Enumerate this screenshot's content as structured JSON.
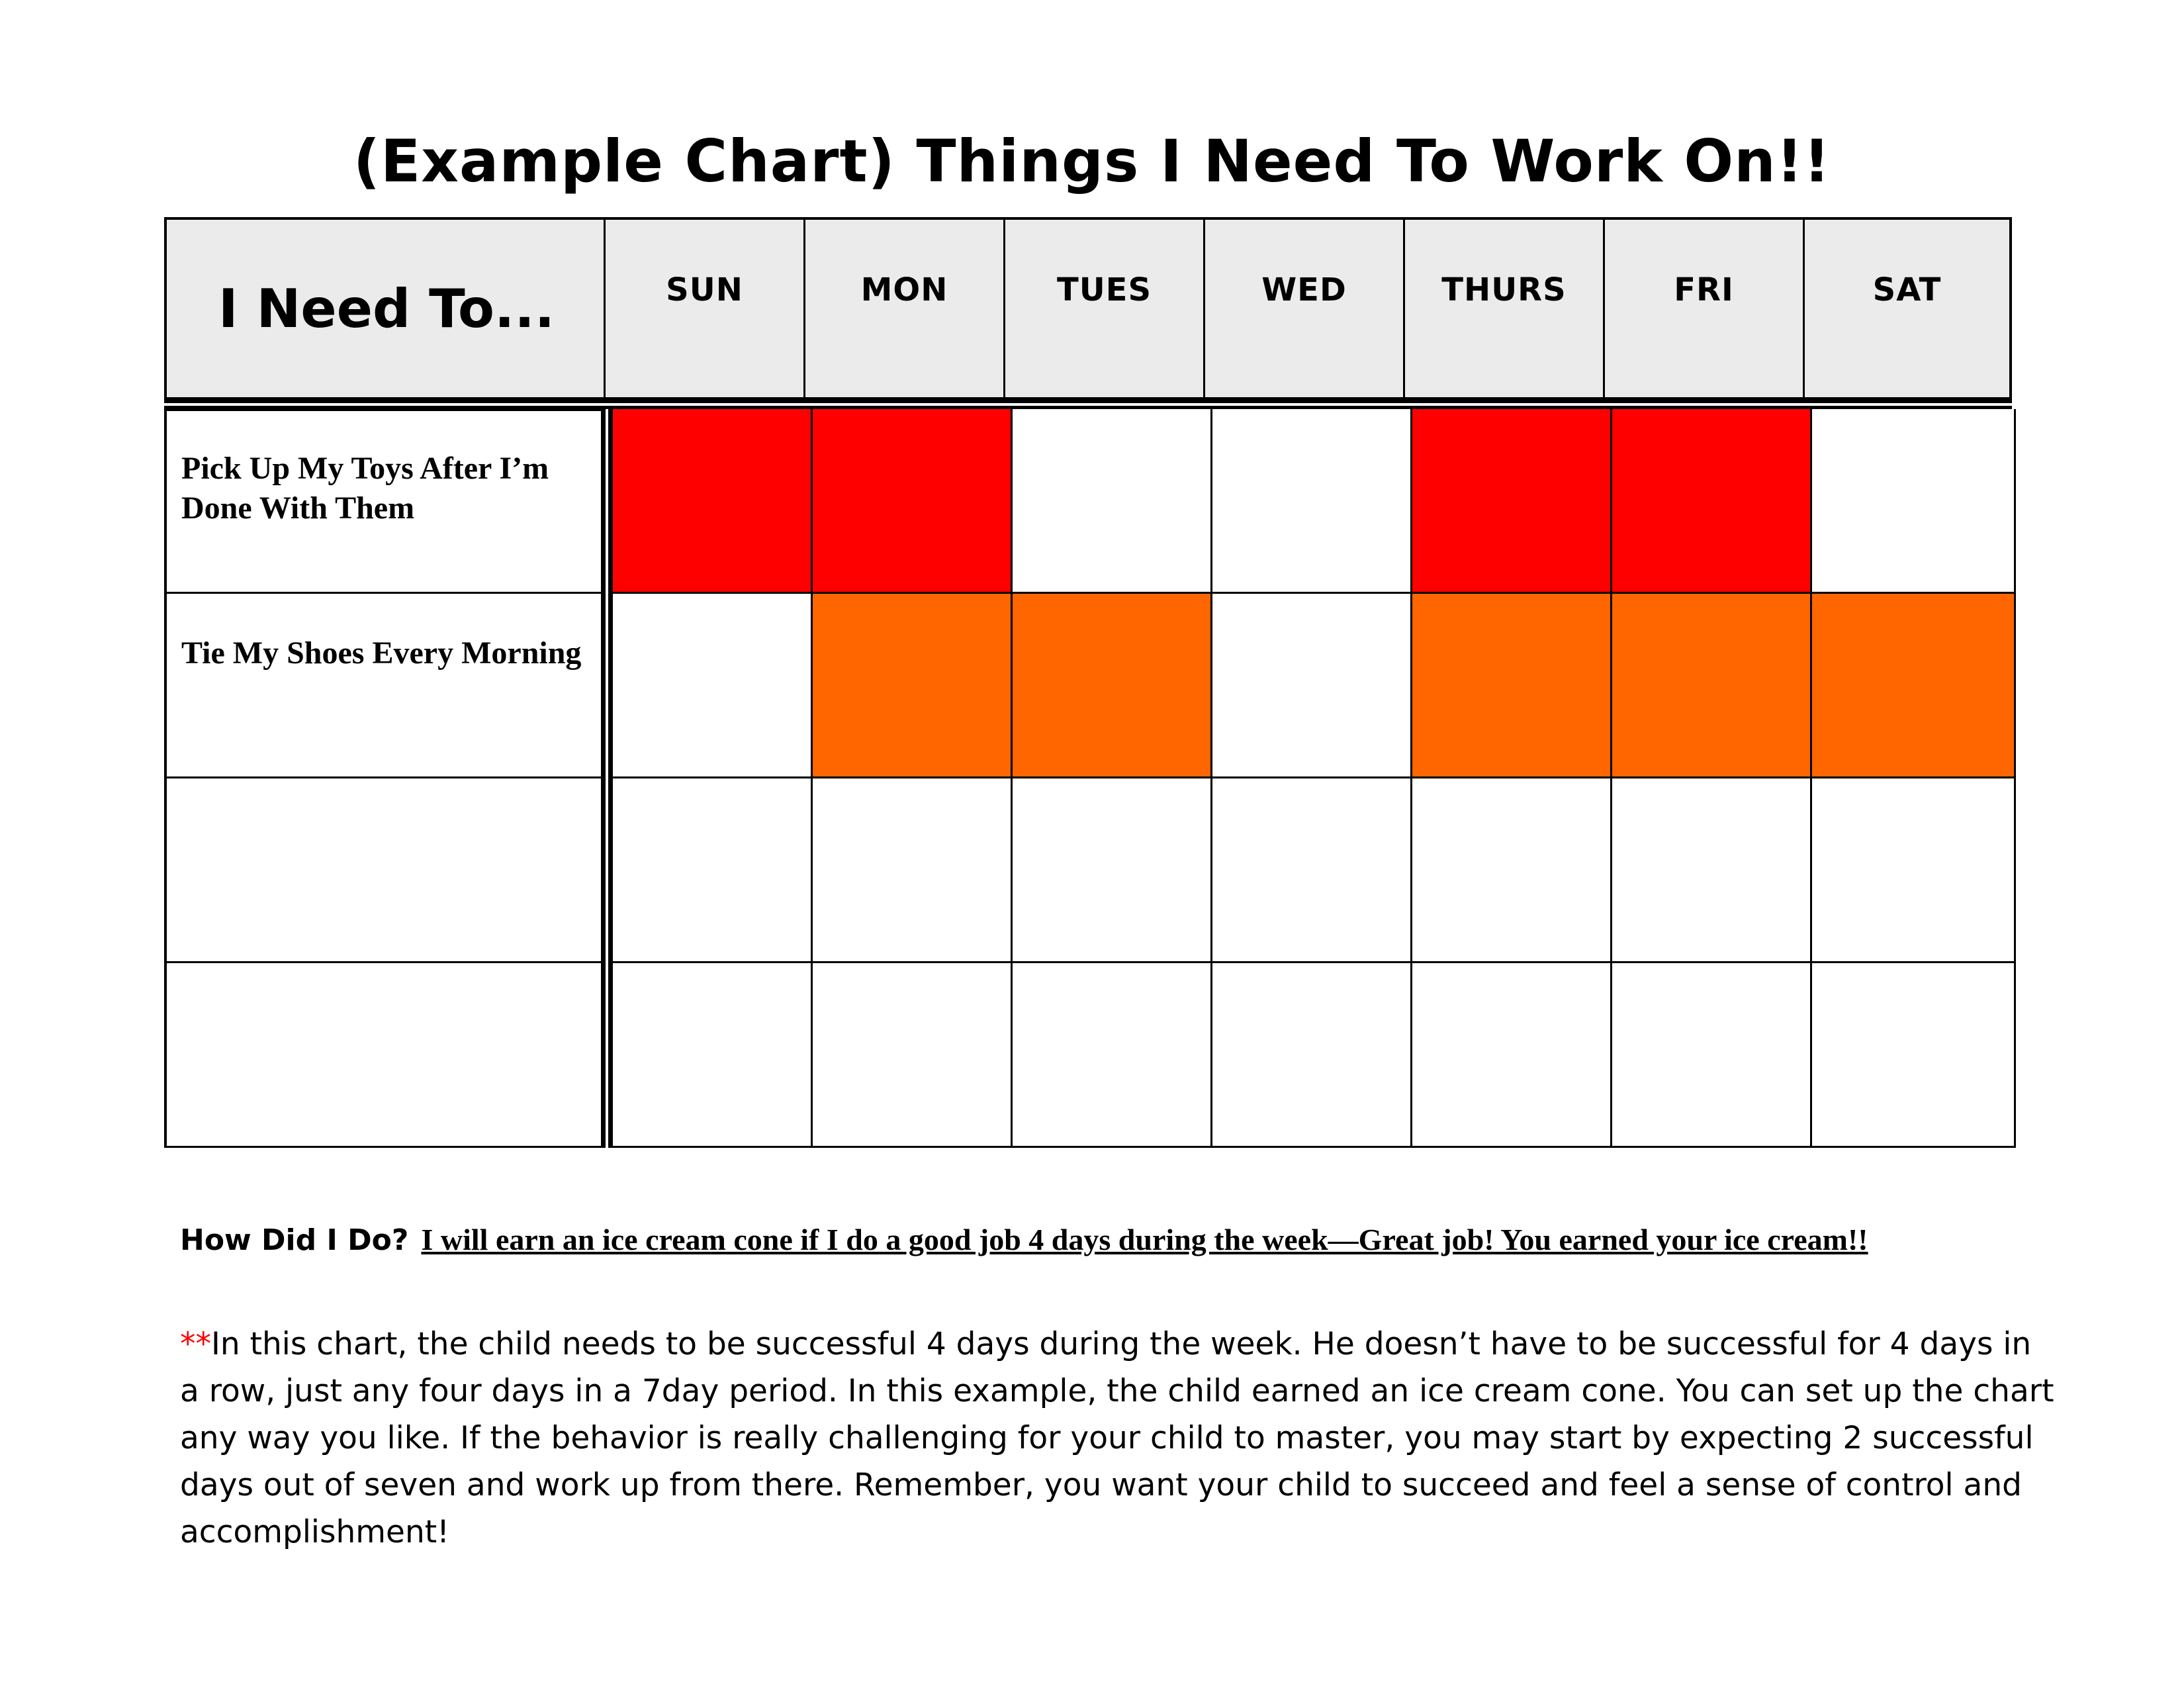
{
  "title": "(Example Chart) Things I Need To Work On!!",
  "header": {
    "task_label": "I Need To...",
    "days": [
      "SUN",
      "MON",
      "TUES",
      "WED",
      "THURS",
      "FRI",
      "SAT"
    ]
  },
  "tasks": [
    {
      "label": "Pick Up My Toys After I’m Done With Them",
      "marks": [
        "red",
        "red",
        "",
        "",
        "red",
        "red",
        ""
      ]
    },
    {
      "label": "Tie My Shoes Every Morning",
      "marks": [
        "",
        "orange",
        "orange",
        "",
        "orange",
        "orange",
        "orange"
      ]
    },
    {
      "label": "",
      "marks": [
        "",
        "",
        "",
        "",
        "",
        "",
        ""
      ]
    },
    {
      "label": "",
      "marks": [
        "",
        "",
        "",
        "",
        "",
        "",
        ""
      ]
    }
  ],
  "colors": {
    "red": "#ff0000",
    "orange": "#ff6600",
    "header_bg": "#ebebeb"
  },
  "footer": {
    "how_label": "How Did I Do?",
    "goal_text": "I will earn an ice cream cone if I do a good job 4 days during the week—Great job!  You earned your ice cream!!",
    "note_stars": "**",
    "note_text": "In this chart, the child needs to be successful 4 days during the week.  He doesn’t have to be successful for 4 days in a row, just any four days in a 7day period.  In this example, the child earned an ice cream cone.  You can set up the chart any way you like.  If the behavior is really challenging for your child to master, you may start by expecting 2 successful days out of seven and work up from there.  Remember, you want your child to succeed and feel a sense of control and accomplishment!"
  }
}
